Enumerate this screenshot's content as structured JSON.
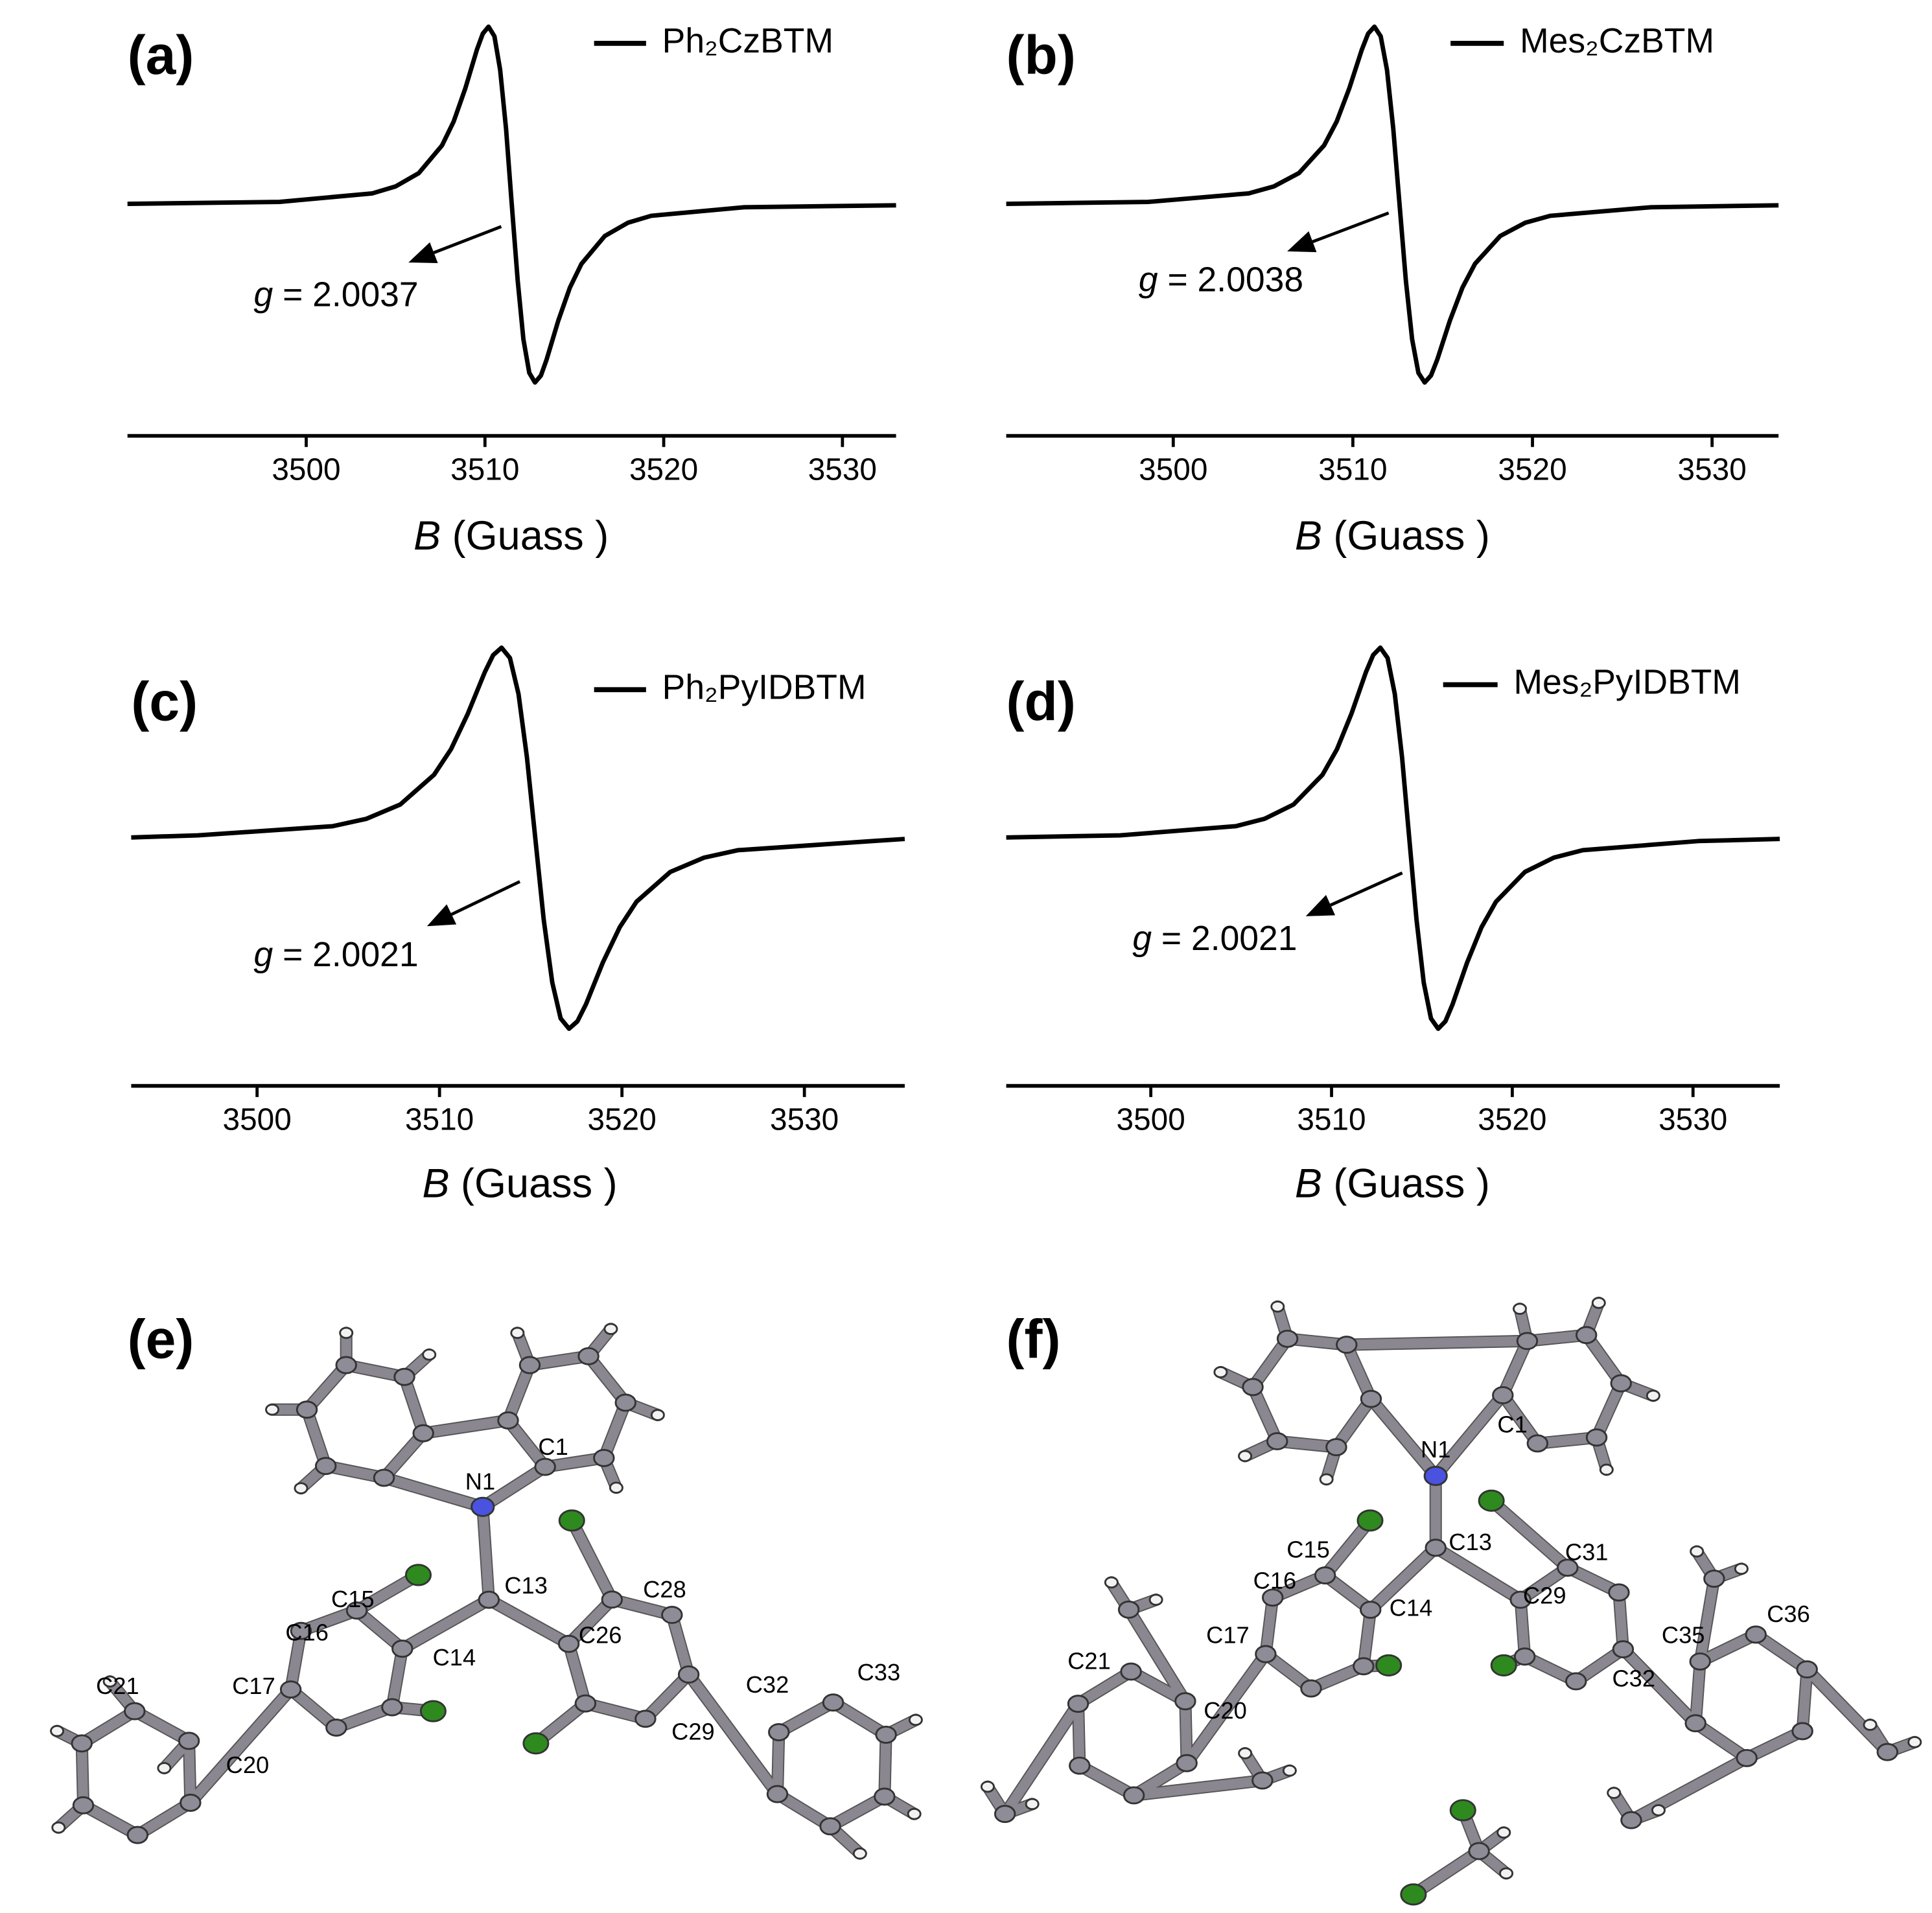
{
  "chart_data": [
    {
      "type": "line",
      "panel_label": "(a)",
      "x": [
        3490,
        3498.5,
        3503.7,
        3505.0,
        3506.3,
        3507.6,
        3508.25,
        3508.9,
        3509.55,
        3509.88,
        3510.2,
        3510.53,
        3510.85,
        3511.18,
        3511.5,
        3511.83,
        3512.15,
        3512.48,
        3512.8,
        3513.13,
        3513.45,
        3514.1,
        3514.75,
        3515.4,
        3516.7,
        3518.0,
        3519.3,
        3524.5,
        3533
      ],
      "series": [
        {
          "name": "Ph₂CzBTM",
          "color": "#000000",
          "values": [
            0.004,
            0.015,
            0.063,
            0.102,
            0.177,
            0.333,
            0.467,
            0.653,
            0.871,
            0.961,
            1,
            0.946,
            0.757,
            0.426,
            0,
            -0.426,
            -0.757,
            -0.946,
            -1,
            -0.961,
            -0.871,
            -0.653,
            -0.467,
            -0.333,
            -0.177,
            -0.102,
            -0.063,
            -0.015,
            -0.004
          ]
        }
      ],
      "xlim": [
        3490,
        3533
      ],
      "xticks": [
        3500,
        3510,
        3520,
        3530
      ],
      "ylim": [
        -1.3,
        1.15
      ],
      "xlabel": {
        "symbol": "B",
        "unit": "(Guass )"
      },
      "annotation": {
        "symbol": "g",
        "value": "= 2.0037"
      }
    },
    {
      "type": "line",
      "panel_label": "(b)",
      "x": [
        3490.7,
        3498.6,
        3504.2,
        3505.6,
        3507.0,
        3508.4,
        3509.1,
        3509.8,
        3510.5,
        3510.85,
        3511.2,
        3511.55,
        3511.9,
        3512.25,
        3512.6,
        3512.95,
        3513.3,
        3513.65,
        3514.0,
        3514.35,
        3514.7,
        3515.4,
        3516.1,
        3516.8,
        3518.2,
        3519.6,
        3521.0,
        3526.6,
        3533.7
      ],
      "series": [
        {
          "name": "Mes₂CzBTM",
          "color": "#000000",
          "values": [
            0.004,
            0.015,
            0.063,
            0.102,
            0.177,
            0.333,
            0.467,
            0.653,
            0.871,
            0.961,
            1,
            0.946,
            0.757,
            0.426,
            0,
            -0.426,
            -0.757,
            -0.946,
            -1,
            -0.961,
            -0.871,
            -0.653,
            -0.467,
            -0.333,
            -0.177,
            -0.102,
            -0.063,
            -0.015,
            -0.004
          ]
        }
      ],
      "xlim": [
        3490.7,
        3533.7
      ],
      "xticks": [
        3500,
        3510,
        3520,
        3530
      ],
      "ylim": [
        -1.3,
        1.15
      ],
      "xlabel": {
        "symbol": "B",
        "unit": "(Guass )"
      },
      "annotation": {
        "symbol": "g",
        "value": "= 2.0038"
      }
    },
    {
      "type": "line",
      "panel_label": "(c)",
      "x": [
        3493.1,
        3496.75,
        3504.15,
        3506.0,
        3507.85,
        3509.7,
        3510.63,
        3511.55,
        3512.48,
        3512.94,
        3513.4,
        3513.86,
        3514.33,
        3514.79,
        3515.25,
        3515.71,
        3516.18,
        3516.64,
        3517.1,
        3517.56,
        3518.03,
        3518.95,
        3519.88,
        3520.8,
        3522.65,
        3524.5,
        3526.35,
        3533.75,
        3535.5
      ],
      "series": [
        {
          "name": "Ph₂PyIDBTM",
          "color": "#000000",
          "values": [
            0.004,
            0.015,
            0.063,
            0.102,
            0.177,
            0.333,
            0.467,
            0.653,
            0.871,
            0.961,
            1,
            0.946,
            0.757,
            0.426,
            0,
            -0.426,
            -0.757,
            -0.946,
            -1,
            -0.961,
            -0.871,
            -0.653,
            -0.467,
            -0.333,
            -0.177,
            -0.102,
            -0.063,
            -0.015,
            -0.004
          ]
        }
      ],
      "xlim": [
        3493.1,
        3535.5
      ],
      "xticks": [
        3500,
        3510,
        3520,
        3530
      ],
      "ylim": [
        -1.3,
        1.15
      ],
      "xlabel": {
        "symbol": "B",
        "unit": "(Guass )"
      },
      "annotation": {
        "symbol": "g",
        "value": "= 2.0021"
      }
    },
    {
      "type": "line",
      "panel_label": "(d)",
      "x": [
        3492,
        3498.3,
        3504.7,
        3506.3,
        3507.9,
        3509.5,
        3510.3,
        3511.1,
        3511.9,
        3512.3,
        3512.7,
        3513.1,
        3513.5,
        3513.9,
        3514.3,
        3514.7,
        3515.1,
        3515.5,
        3515.9,
        3516.3,
        3516.7,
        3517.5,
        3518.3,
        3519.1,
        3520.7,
        3522.3,
        3523.9,
        3530.3,
        3534.8
      ],
      "series": [
        {
          "name": "Mes₂PyIDBTM",
          "color": "#000000",
          "values": [
            0.004,
            0.015,
            0.063,
            0.102,
            0.177,
            0.333,
            0.467,
            0.653,
            0.871,
            0.961,
            1,
            0.946,
            0.757,
            0.426,
            0,
            -0.426,
            -0.757,
            -0.946,
            -1,
            -0.961,
            -0.871,
            -0.653,
            -0.467,
            -0.333,
            -0.177,
            -0.102,
            -0.063,
            -0.015,
            -0.004
          ]
        }
      ],
      "xlim": [
        3492,
        3534.8
      ],
      "xticks": [
        3500,
        3510,
        3520,
        3530
      ],
      "ylim": [
        -1.3,
        1.15
      ],
      "xlabel": {
        "symbol": "B",
        "unit": "(Guass )"
      },
      "annotation": {
        "symbol": "g",
        "value": "= 2.0021"
      }
    }
  ],
  "structures": [
    {
      "panel_label": "(e)",
      "atom_labels": [
        "C1",
        "N1",
        "C13",
        "C15",
        "C16",
        "C14",
        "C28",
        "C26",
        "C17",
        "C21",
        "C20",
        "C32",
        "C33",
        "C29"
      ]
    },
    {
      "panel_label": "(f)",
      "atom_labels": [
        "C1",
        "N1",
        "C13",
        "C15",
        "C31",
        "C16",
        "C29",
        "C14",
        "C17",
        "C35",
        "C36",
        "C21",
        "C20",
        "C32"
      ]
    }
  ]
}
